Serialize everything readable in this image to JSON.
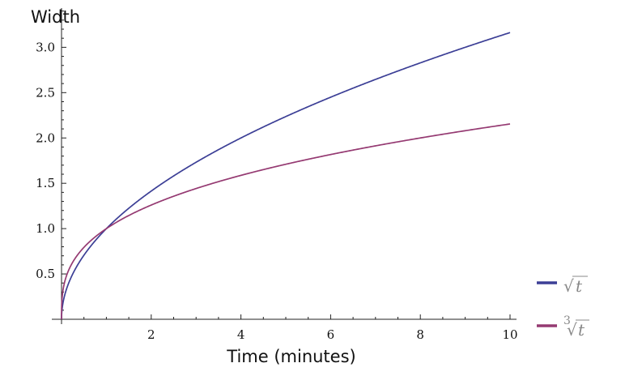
{
  "chart_data": {
    "type": "line",
    "title": "",
    "xlabel": "Time (minutes)",
    "ylabel": "Width",
    "xlim": [
      0,
      10
    ],
    "ylim": [
      0,
      3.2
    ],
    "xticks": [
      2,
      4,
      6,
      8,
      10
    ],
    "xtick_labels": [
      "2",
      "4",
      "6",
      "8",
      "10"
    ],
    "yticks": [
      0.5,
      1.0,
      1.5,
      2.0,
      2.5,
      3.0
    ],
    "ytick_labels": [
      "0.5",
      "1.0",
      "1.5",
      "2.0",
      "2.5",
      "3.0"
    ],
    "grid": false,
    "legend_position": "bottom-right",
    "x": [
      0,
      0.01,
      0.05,
      0.1,
      0.25,
      0.5,
      1,
      1.5,
      2,
      3,
      4,
      5,
      6,
      7,
      8,
      9,
      10
    ],
    "series": [
      {
        "name": "√t",
        "color": "#3c3f96",
        "values": [
          0,
          0.1,
          0.224,
          0.316,
          0.5,
          0.707,
          1.0,
          1.225,
          1.414,
          1.732,
          2.0,
          2.236,
          2.449,
          2.646,
          2.828,
          3.0,
          3.162
        ]
      },
      {
        "name": "∛t",
        "color": "#953a72",
        "values": [
          0,
          0.215,
          0.368,
          0.464,
          0.63,
          0.794,
          1.0,
          1.145,
          1.26,
          1.442,
          1.587,
          1.71,
          1.817,
          1.913,
          2.0,
          2.08,
          2.154
        ]
      }
    ],
    "legend": {
      "sqrt_symbol": "√",
      "cbrt_index": "3",
      "variable": "t"
    }
  }
}
